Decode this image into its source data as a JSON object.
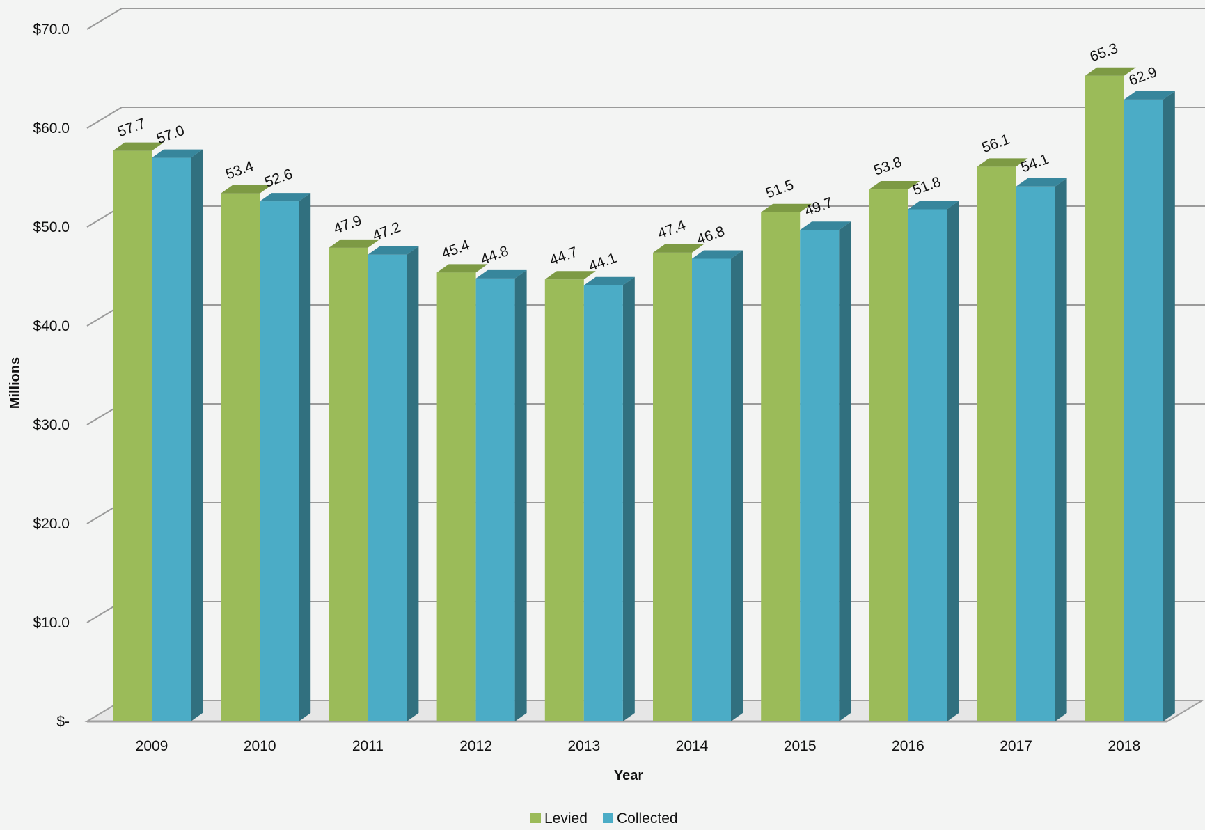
{
  "chart_data": {
    "type": "bar",
    "categories": [
      "2009",
      "2010",
      "2011",
      "2012",
      "2013",
      "2014",
      "2015",
      "2016",
      "2017",
      "2018"
    ],
    "series": [
      {
        "name": "Levied",
        "values": [
          57.7,
          53.4,
          47.9,
          45.4,
          44.7,
          47.4,
          51.5,
          53.8,
          56.1,
          65.3
        ],
        "labels": [
          "57.7",
          "53.4",
          "47.9",
          "45.4",
          "44.7",
          "47.4",
          "51.5",
          "53.8",
          "56.1",
          "65.3"
        ],
        "color": "#9bbb59",
        "top_color": "#7d9a44"
      },
      {
        "name": "Collected",
        "values": [
          57.0,
          52.6,
          47.2,
          44.8,
          44.1,
          46.8,
          49.7,
          51.8,
          54.1,
          62.9
        ],
        "labels": [
          "57.0",
          "52.6",
          "47.2",
          "44.8",
          "44.1",
          "46.8",
          "49.7",
          "51.8",
          "54.1",
          "62.9"
        ],
        "color": "#4bacc6",
        "top_color": "#37869c",
        "side_color": "#31707f"
      }
    ],
    "ylim": [
      0,
      70
    ],
    "yticks": [
      0,
      10,
      20,
      30,
      40,
      50,
      60,
      70
    ],
    "ytick_labels": [
      "$-",
      "$10.0",
      "$20.0",
      "$30.0",
      "$40.0",
      "$50.0",
      "$60.0",
      "$70.0"
    ],
    "xlabel": "Year",
    "ylabel": "Millions",
    "grid": true,
    "legend": "bottom",
    "style": "3d-clustered-column"
  }
}
